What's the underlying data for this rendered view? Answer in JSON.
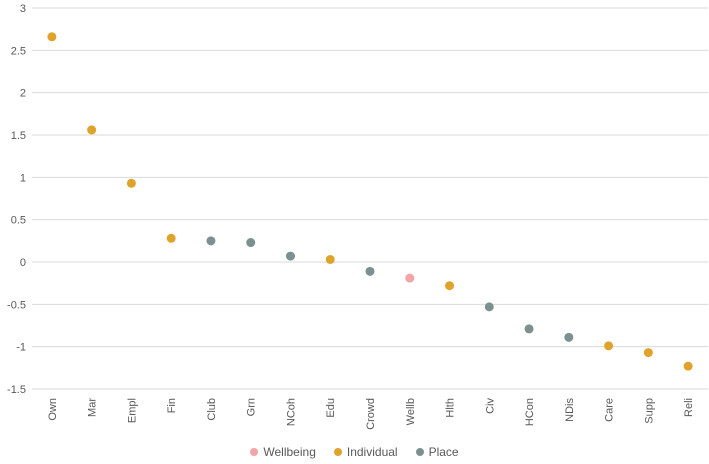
{
  "chart_data": {
    "type": "scatter",
    "title": "",
    "xlabel": "",
    "ylabel": "",
    "categories": [
      "Own",
      "Mar",
      "Empl",
      "Fin",
      "Club",
      "Grn",
      "NCoh",
      "Edu",
      "Crowd",
      "Wellb",
      "Hlth",
      "Civ",
      "HCon",
      "NDis",
      "Care",
      "Supp",
      "Reli"
    ],
    "series": [
      {
        "name": "Wellbeing",
        "color": "#F3A4A4"
      },
      {
        "name": "Individual",
        "color": "#DFA32C"
      },
      {
        "name": "Place",
        "color": "#7C918F"
      }
    ],
    "points": [
      {
        "category": "Own",
        "series": "Individual",
        "value": 2.66
      },
      {
        "category": "Mar",
        "series": "Individual",
        "value": 1.56
      },
      {
        "category": "Empl",
        "series": "Individual",
        "value": 0.93
      },
      {
        "category": "Fin",
        "series": "Individual",
        "value": 0.28
      },
      {
        "category": "Club",
        "series": "Place",
        "value": 0.25
      },
      {
        "category": "Grn",
        "series": "Place",
        "value": 0.23
      },
      {
        "category": "NCoh",
        "series": "Place",
        "value": 0.07
      },
      {
        "category": "Edu",
        "series": "Individual",
        "value": 0.03
      },
      {
        "category": "Crowd",
        "series": "Place",
        "value": -0.11
      },
      {
        "category": "Wellb",
        "series": "Wellbeing",
        "value": -0.19
      },
      {
        "category": "Hlth",
        "series": "Individual",
        "value": -0.28
      },
      {
        "category": "Civ",
        "series": "Place",
        "value": -0.53
      },
      {
        "category": "HCon",
        "series": "Place",
        "value": -0.79
      },
      {
        "category": "NDis",
        "series": "Place",
        "value": -0.89
      },
      {
        "category": "Care",
        "series": "Individual",
        "value": -0.99
      },
      {
        "category": "Supp",
        "series": "Individual",
        "value": -1.07
      },
      {
        "category": "Reli",
        "series": "Individual",
        "value": -1.23
      }
    ],
    "ylim": [
      -1.5,
      3
    ],
    "yticks": [
      3,
      2.5,
      2,
      1.5,
      1,
      0.5,
      0,
      -0.5,
      -1,
      -1.5
    ],
    "grid": true,
    "legend_position": "bottom"
  },
  "legend": {
    "items": [
      {
        "label": "Wellbeing",
        "color": "#F3A4A4"
      },
      {
        "label": "Individual",
        "color": "#DFA32C"
      },
      {
        "label": "Place",
        "color": "#7C918F"
      }
    ]
  },
  "style": {
    "gridline_color": "#D9D9D9",
    "axis_label_color": "#595959",
    "background": "#FFFFFF",
    "marker_radius": 4.5
  }
}
